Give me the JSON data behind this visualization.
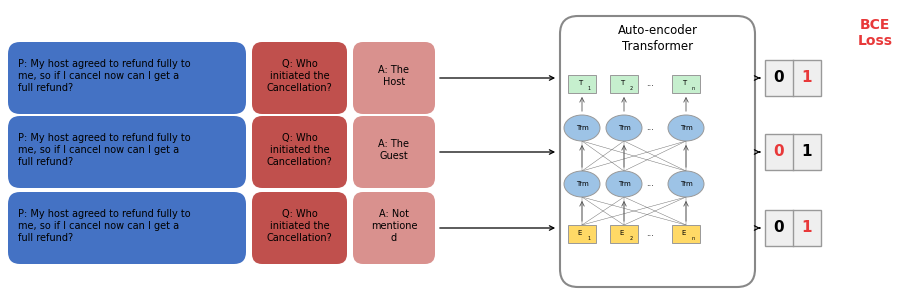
{
  "bce_loss_text": "BCE\nLoss",
  "bce_loss_color": "#E8393A",
  "blue_color": "#4472C4",
  "red_color": "#C0504D",
  "pink_color": "#D9918E",
  "green_node_color": "#C6EFCE",
  "blue_node_color": "#9DC3E6",
  "yellow_node_color": "#FFD966",
  "box_bg_color": "#EFEFEF",
  "passage_text": "P: My host agreed to refund fully to\nme, so if I cancel now can I get a\nfull refund?",
  "question_text": "Q: Who\ninitiated the\nCancellation?",
  "answer_texts": [
    "A: The\nHost",
    "A: The\nGuest",
    "A: Not\nmentione\nd"
  ],
  "transformer_label": "Auto-encoder\nTransformer",
  "output_rows": [
    {
      "left": "0",
      "right": "1",
      "left_red": false,
      "right_red": true
    },
    {
      "left": "0",
      "right": "1",
      "left_red": true,
      "right_red": false
    },
    {
      "left": "0",
      "right": "1",
      "left_red": false,
      "right_red": true
    }
  ],
  "node_label": "Trm",
  "embed_label": "E",
  "token_label": "T",
  "fig_w": 9.15,
  "fig_h": 3.03
}
